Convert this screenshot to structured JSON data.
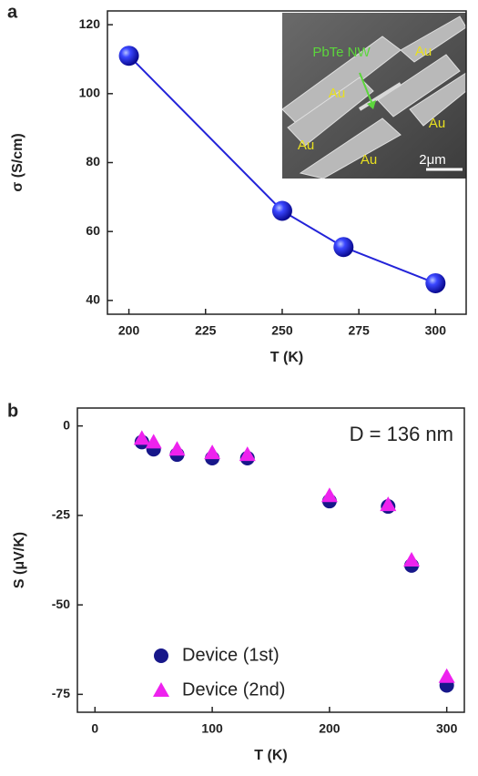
{
  "chart_data": [
    {
      "type": "line",
      "panel_label": "a",
      "x_label": "T (K)",
      "y_label": "σ (S/cm)",
      "x": [
        200,
        250,
        270,
        300
      ],
      "values": [
        111,
        66,
        55.5,
        45
      ],
      "color": "#2323d8",
      "xlim": [
        193,
        310
      ],
      "ylim": [
        36,
        124
      ],
      "xticks": [
        200,
        225,
        250,
        275,
        300
      ],
      "yticks": [
        40,
        60,
        80,
        100,
        120
      ],
      "inset": {
        "labels": [
          "PbTe NW",
          "Au",
          "Au",
          "Au",
          "Au",
          "Au",
          "2μm"
        ]
      }
    },
    {
      "type": "scatter",
      "panel_label": "b",
      "x_label": "T (K)",
      "y_label": "S (μV/K)",
      "annotation": "D = 136 nm",
      "x": [
        40,
        50,
        70,
        100,
        130,
        200,
        250,
        270,
        300
      ],
      "series": [
        {
          "name": "Device (1st)",
          "color": "#17178a",
          "marker": "circle",
          "values": [
            -4.5,
            -6.5,
            -8,
            -9,
            -9,
            -21,
            -22.5,
            -39,
            -72.5
          ]
        },
        {
          "name": "Device (2nd)",
          "color": "#ee22ee",
          "marker": "triangle",
          "values": [
            -3.5,
            -4.5,
            -6.5,
            -7.5,
            -8,
            -19.5,
            -22,
            -37.5,
            -70
          ]
        }
      ],
      "xlim": [
        -15,
        315
      ],
      "ylim": [
        -80,
        5
      ],
      "xticks": [
        0,
        100,
        200,
        300
      ],
      "yticks": [
        0,
        -25,
        -50,
        -75
      ],
      "legend": "lower left"
    }
  ]
}
